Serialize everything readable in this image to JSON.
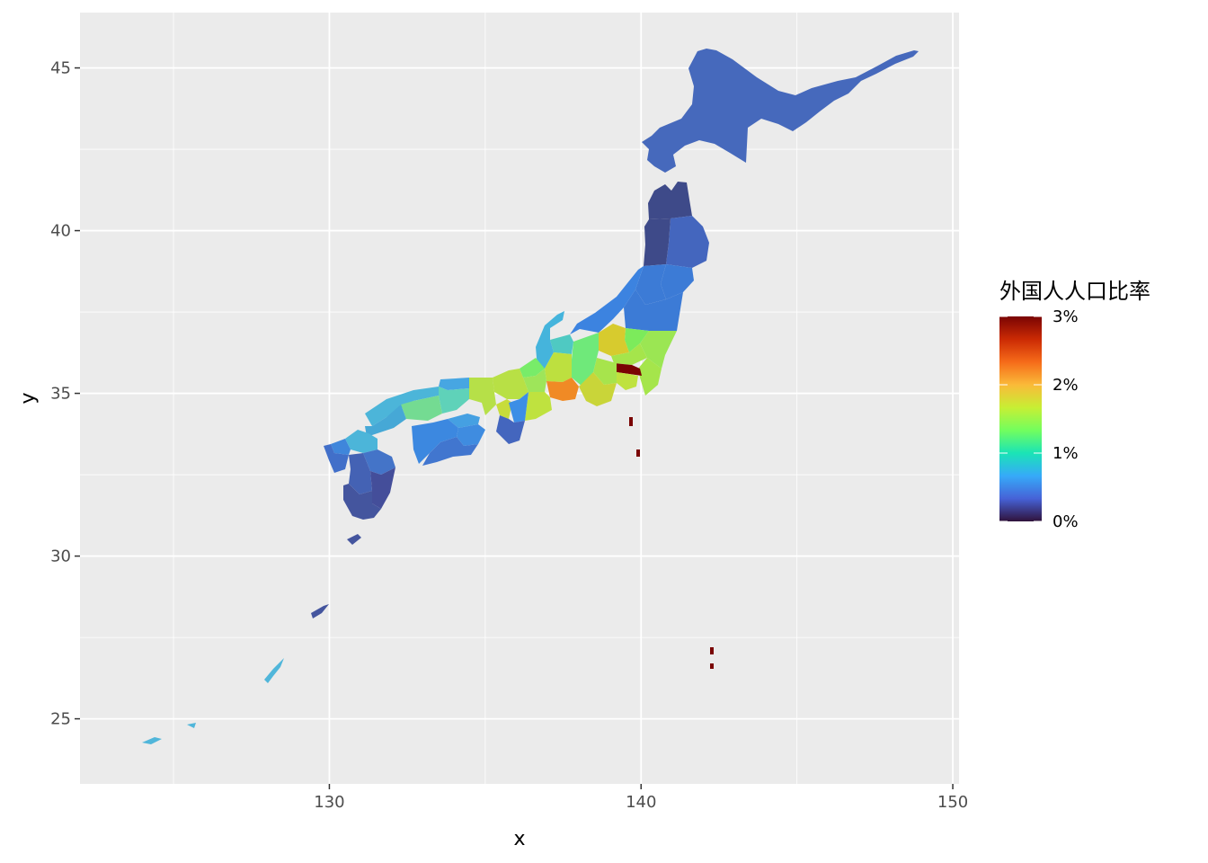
{
  "chart_data": {
    "type": "choropleth-map",
    "xlabel": "x",
    "ylabel": "y",
    "xlim": [
      122,
      150.2
    ],
    "ylim": [
      23,
      46.7
    ],
    "x_ticks": [
      130,
      140,
      150
    ],
    "x_tick_labels": [
      "130",
      "140",
      "150"
    ],
    "y_ticks": [
      25,
      30,
      35,
      40,
      45
    ],
    "y_tick_labels": [
      "25",
      "30",
      "35",
      "40",
      "45"
    ],
    "grid": true,
    "panel_background": "#EBEBEB",
    "legend": {
      "title": "外国人人口比率",
      "placement": "right",
      "range": [
        0,
        3
      ],
      "breaks": [
        0,
        1,
        2,
        3
      ],
      "labels": [
        "0%",
        "1%",
        "2%",
        "3%"
      ],
      "colors": [
        "#30123B",
        "#4662D7",
        "#36AAF9",
        "#1AE4B6",
        "#72FE5E",
        "#C7EF34",
        "#FABA39",
        "#F66B19",
        "#CB2A04",
        "#7A0403"
      ]
    },
    "regions": [
      {
        "name": "北海道",
        "value": 0.45,
        "color": "#4669BC"
      },
      {
        "name": "青森",
        "value": 0.15,
        "color": "#3E4A89"
      },
      {
        "name": "岩手",
        "value": 0.35,
        "color": "#4466BE"
      },
      {
        "name": "宮城",
        "value": 0.55,
        "color": "#3C7BD6"
      },
      {
        "name": "秋田",
        "value": 0.15,
        "color": "#3E4A89"
      },
      {
        "name": "山形",
        "value": 0.55,
        "color": "#3C7BD6"
      },
      {
        "name": "福島",
        "value": 0.55,
        "color": "#3C7BD6"
      },
      {
        "name": "茨城",
        "value": 1.6,
        "color": "#9BE653"
      },
      {
        "name": "栃木",
        "value": 1.3,
        "color": "#7CEB5B"
      },
      {
        "name": "群馬",
        "value": 1.95,
        "color": "#D7CB2E"
      },
      {
        "name": "埼玉",
        "value": 1.6,
        "color": "#A5E54B"
      },
      {
        "name": "千葉",
        "value": 1.65,
        "color": "#A5E54B"
      },
      {
        "name": "東京",
        "value": 3.0,
        "color": "#7A0403"
      },
      {
        "name": "神奈川",
        "value": 1.7,
        "color": "#BFE23F"
      },
      {
        "name": "新潟",
        "value": 0.6,
        "color": "#3C83E0"
      },
      {
        "name": "富山",
        "value": 1.1,
        "color": "#4FC9C2"
      },
      {
        "name": "石川",
        "value": 0.9,
        "color": "#45B4DC"
      },
      {
        "name": "福井",
        "value": 1.3,
        "color": "#78EC69"
      },
      {
        "name": "山梨",
        "value": 1.5,
        "color": "#A7E44C"
      },
      {
        "name": "長野",
        "value": 1.3,
        "color": "#6FE97A"
      },
      {
        "name": "岐阜",
        "value": 1.9,
        "color": "#C9D539"
      },
      {
        "name": "静岡",
        "value": 1.7,
        "color": "#BDE03F"
      },
      {
        "name": "愛知",
        "value": 2.4,
        "color": "#F08A25"
      },
      {
        "name": "三重",
        "value": 1.7,
        "color": "#BFE23F"
      },
      {
        "name": "滋賀",
        "value": 1.4,
        "color": "#9EE55A"
      },
      {
        "name": "京都",
        "value": 1.6,
        "color": "#B8E045"
      },
      {
        "name": "大阪",
        "value": 1.8,
        "color": "#C7DC3B"
      },
      {
        "name": "兵庫",
        "value": 1.6,
        "color": "#B6E048"
      },
      {
        "name": "奈良",
        "value": 0.7,
        "color": "#3C8EE6"
      },
      {
        "name": "和歌山",
        "value": 0.45,
        "color": "#4466BE"
      },
      {
        "name": "鳥取",
        "value": 0.7,
        "color": "#47A6E2"
      },
      {
        "name": "島根",
        "value": 0.85,
        "color": "#4CB5D9"
      },
      {
        "name": "岡山",
        "value": 1.1,
        "color": "#5FD2B9"
      },
      {
        "name": "広島",
        "value": 1.2,
        "color": "#74DB92"
      },
      {
        "name": "山口",
        "value": 0.75,
        "color": "#46A8D6"
      },
      {
        "name": "徳島",
        "value": 0.65,
        "color": "#3F8CE0"
      },
      {
        "name": "香川",
        "value": 0.75,
        "color": "#45A0E2"
      },
      {
        "name": "愛媛",
        "value": 0.6,
        "color": "#3C88E0"
      },
      {
        "name": "高知",
        "value": 0.45,
        "color": "#4176CF"
      },
      {
        "name": "福岡",
        "value": 0.9,
        "color": "#4CB5D9"
      },
      {
        "name": "佐賀",
        "value": 0.55,
        "color": "#3F86DB"
      },
      {
        "name": "長崎",
        "value": 0.45,
        "color": "#416FC9"
      },
      {
        "name": "熊本",
        "value": 0.35,
        "color": "#4462B4"
      },
      {
        "name": "大分",
        "value": 0.5,
        "color": "#4474C8"
      },
      {
        "name": "宮崎",
        "value": 0.25,
        "color": "#444E9A"
      },
      {
        "name": "鹿児島",
        "value": 0.25,
        "color": "#44559E"
      },
      {
        "name": "沖縄",
        "value": 0.9,
        "color": "#50B6DA"
      }
    ]
  }
}
